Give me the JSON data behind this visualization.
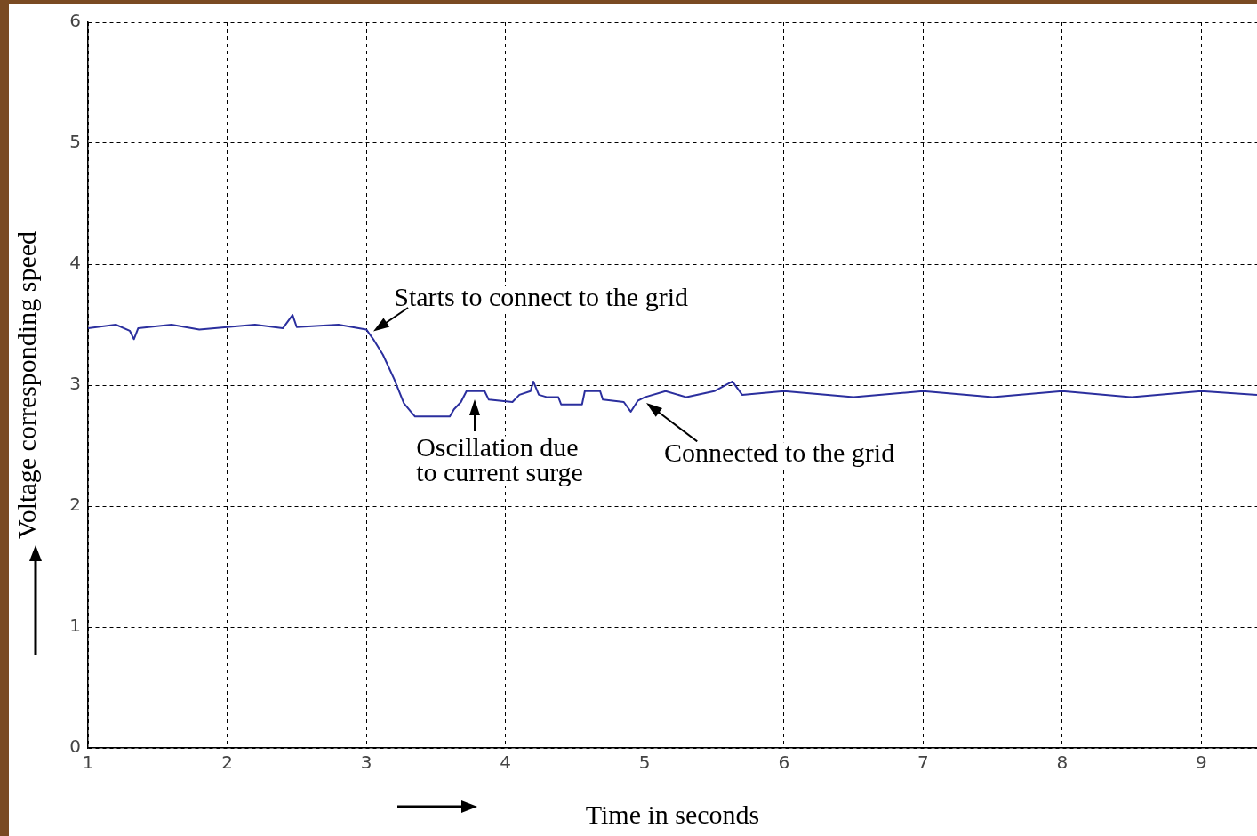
{
  "chart_data": {
    "type": "line",
    "xlabel": "Time in seconds",
    "ylabel": "Voltage corresponding speed",
    "xlim": [
      1,
      9.4
    ],
    "xticks": [
      1,
      2,
      3,
      4,
      5,
      6,
      7,
      8,
      9
    ],
    "ylim": [
      0,
      6
    ],
    "yticks": [
      0,
      1,
      2,
      3,
      4,
      5,
      6
    ],
    "grid": true,
    "legend": false,
    "marker": "none",
    "line_style": "solid",
    "series": [
      {
        "color": "#2b2f9e",
        "x": [
          1.0,
          1.2,
          1.3,
          1.33,
          1.36,
          1.6,
          1.8,
          2.0,
          2.2,
          2.4,
          2.47,
          2.5,
          2.8,
          3.0,
          3.05,
          3.12,
          3.2,
          3.27,
          3.32,
          3.35,
          3.6,
          3.63,
          3.68,
          3.72,
          3.85,
          3.88,
          4.05,
          4.1,
          4.18,
          4.2,
          4.24,
          4.3,
          4.38,
          4.4,
          4.55,
          4.57,
          4.68,
          4.7,
          4.85,
          4.9,
          4.95,
          5.0,
          5.15,
          5.3,
          5.5,
          5.63,
          5.7,
          6.0,
          6.5,
          7.0,
          7.5,
          8.0,
          8.5,
          9.0,
          9.4
        ],
        "values": [
          3.47,
          3.5,
          3.45,
          3.38,
          3.47,
          3.5,
          3.46,
          3.48,
          3.5,
          3.47,
          3.58,
          3.48,
          3.5,
          3.46,
          3.38,
          3.25,
          3.05,
          2.85,
          2.78,
          2.74,
          2.74,
          2.8,
          2.86,
          2.95,
          2.95,
          2.88,
          2.86,
          2.92,
          2.95,
          3.03,
          2.92,
          2.9,
          2.9,
          2.84,
          2.84,
          2.95,
          2.95,
          2.88,
          2.86,
          2.78,
          2.87,
          2.9,
          2.95,
          2.9,
          2.95,
          3.03,
          2.92,
          2.95,
          2.9,
          2.95,
          2.9,
          2.95,
          2.9,
          2.95,
          2.92
        ]
      }
    ],
    "annotations": [
      {
        "text": "Starts to connect to the grid",
        "x": 3.02,
        "y": 3.42
      },
      {
        "text": "Oscillation due\nto current surge",
        "x": 3.78,
        "y": 2.93
      },
      {
        "text": "Connected to the grid",
        "x": 4.98,
        "y": 2.88
      }
    ]
  }
}
